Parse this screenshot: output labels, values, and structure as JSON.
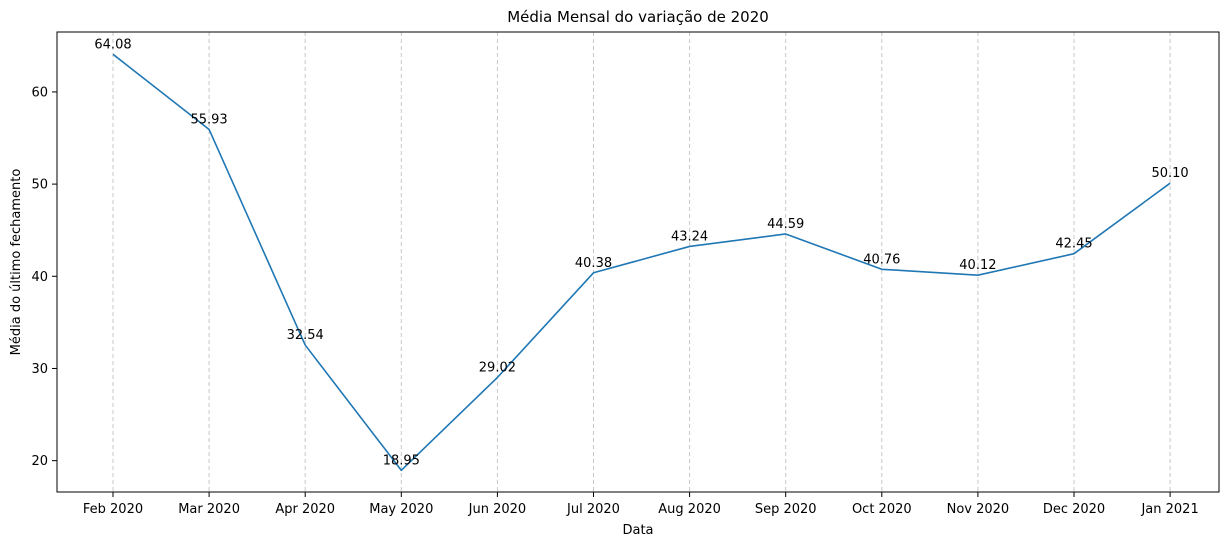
{
  "chart_data": {
    "type": "line",
    "title": "Média Mensal do variação de 2020",
    "xlabel": "Data",
    "ylabel": "Média do último fechamento",
    "categories": [
      "Feb 2020",
      "Mar 2020",
      "Apr 2020",
      "May 2020",
      "Jun 2020",
      "Jul 2020",
      "Aug 2020",
      "Sep 2020",
      "Oct 2020",
      "Nov 2020",
      "Dec 2020",
      "Jan 2021"
    ],
    "values": [
      64.08,
      55.93,
      32.54,
      18.95,
      29.02,
      40.38,
      43.24,
      44.59,
      40.76,
      40.12,
      42.45,
      50.1
    ],
    "value_labels": [
      "64.08",
      "55.93",
      "32.54",
      "18.95",
      "29.02",
      "40.38",
      "43.24",
      "44.59",
      "40.76",
      "40.12",
      "42.45",
      "50.10"
    ],
    "yticks": [
      "20",
      "30",
      "40",
      "50",
      "60"
    ],
    "ylim": [
      16.6,
      66.5
    ],
    "grid": "vertical dashed",
    "line_color": "#1f77b4",
    "grid_color": "#c8c8c8"
  }
}
